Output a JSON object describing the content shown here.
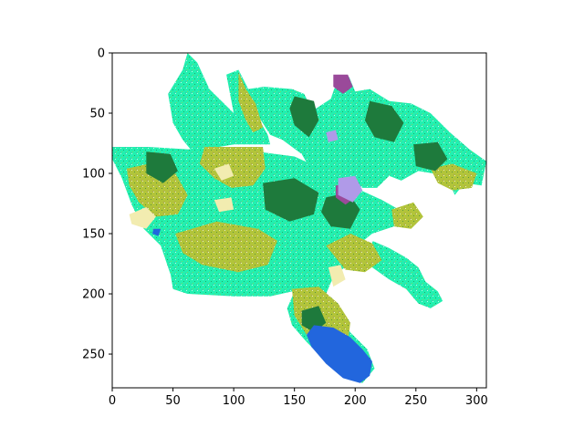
{
  "chart_data": {
    "type": "heatmap",
    "title": "",
    "xlabel": "",
    "ylabel": "",
    "xlim": [
      0,
      308
    ],
    "ylim": [
      278,
      0
    ],
    "x_ticks": [
      "0",
      "50",
      "100",
      "150",
      "200",
      "250",
      "300"
    ],
    "y_ticks": [
      "0",
      "50",
      "100",
      "150",
      "200",
      "250"
    ],
    "grid": false,
    "legend": "none",
    "colors": {
      "cyan_green": "#22f0b0",
      "olive": "#b2c43a",
      "dark_green": "#1e7a3c",
      "blue": "#2266dd",
      "purple": "#9a4a9a",
      "lavender": "#b09ae8",
      "cream": "#f2ecb0",
      "background": "#ffffff"
    },
    "regions": [
      {
        "name": "main-cover",
        "color": "cyan_green",
        "polygon": [
          [
            62,
            0
          ],
          [
            58,
            14
          ],
          [
            46,
            34
          ],
          [
            50,
            58
          ],
          [
            58,
            72
          ],
          [
            66,
            82
          ],
          [
            88,
            78
          ],
          [
            100,
            76
          ],
          [
            130,
            76
          ],
          [
            128,
            68
          ],
          [
            108,
            32
          ],
          [
            104,
            14
          ],
          [
            94,
            18
          ],
          [
            100,
            50
          ],
          [
            80,
            30
          ],
          [
            70,
            8
          ]
        ]
      },
      {
        "name": "north-block",
        "color": "cyan_green",
        "polygon": [
          [
            104,
            14
          ],
          [
            112,
            30
          ],
          [
            125,
            28
          ],
          [
            148,
            30
          ],
          [
            158,
            34
          ],
          [
            165,
            48
          ],
          [
            180,
            38
          ],
          [
            186,
            20
          ],
          [
            195,
            20
          ],
          [
            200,
            32
          ],
          [
            212,
            30
          ],
          [
            228,
            40
          ],
          [
            246,
            42
          ],
          [
            262,
            50
          ],
          [
            278,
            66
          ],
          [
            294,
            80
          ],
          [
            308,
            90
          ],
          [
            304,
            110
          ],
          [
            290,
            108
          ],
          [
            282,
            118
          ],
          [
            276,
            104
          ],
          [
            264,
            100
          ],
          [
            252,
            98
          ],
          [
            238,
            106
          ],
          [
            228,
            102
          ],
          [
            218,
            112
          ],
          [
            206,
            112
          ],
          [
            198,
            106
          ],
          [
            182,
            104
          ],
          [
            164,
            98
          ],
          [
            156,
            84
          ],
          [
            140,
            72
          ],
          [
            130,
            68
          ],
          [
            110,
            36
          ]
        ]
      },
      {
        "name": "west-belt",
        "color": "cyan_green",
        "polygon": [
          [
            0,
            78
          ],
          [
            30,
            78
          ],
          [
            62,
            80
          ],
          [
            90,
            80
          ],
          [
            120,
            82
          ],
          [
            150,
            86
          ],
          [
            176,
            98
          ],
          [
            196,
            110
          ],
          [
            222,
            122
          ],
          [
            236,
            130
          ],
          [
            232,
            144
          ],
          [
            214,
            150
          ],
          [
            204,
            158
          ],
          [
            196,
            174
          ],
          [
            182,
            186
          ],
          [
            176,
            200
          ],
          [
            164,
            208
          ],
          [
            148,
            198
          ],
          [
            130,
            202
          ],
          [
            100,
            202
          ],
          [
            62,
            200
          ],
          [
            50,
            196
          ],
          [
            48,
            184
          ],
          [
            40,
            160
          ],
          [
            26,
            146
          ],
          [
            16,
            126
          ],
          [
            8,
            104
          ],
          [
            0,
            88
          ]
        ]
      },
      {
        "name": "east-arm",
        "color": "cyan_green",
        "polygon": [
          [
            214,
            156
          ],
          [
            228,
            162
          ],
          [
            242,
            170
          ],
          [
            252,
            178
          ],
          [
            258,
            190
          ],
          [
            268,
            198
          ],
          [
            272,
            206
          ],
          [
            262,
            212
          ],
          [
            252,
            208
          ],
          [
            242,
            196
          ],
          [
            228,
            188
          ],
          [
            214,
            178
          ]
        ]
      },
      {
        "name": "south-lobe",
        "color": "cyan_green",
        "polygon": [
          [
            150,
            198
          ],
          [
            176,
            200
          ],
          [
            186,
            218
          ],
          [
            196,
            232
          ],
          [
            210,
            246
          ],
          [
            216,
            262
          ],
          [
            206,
            274
          ],
          [
            192,
            270
          ],
          [
            176,
            256
          ],
          [
            160,
            240
          ],
          [
            148,
            226
          ],
          [
            144,
            212
          ]
        ]
      },
      {
        "name": "olive-nw",
        "color": "olive",
        "polygon": [
          [
            76,
            78
          ],
          [
            124,
            78
          ],
          [
            126,
            96
          ],
          [
            116,
            110
          ],
          [
            98,
            112
          ],
          [
            84,
            104
          ],
          [
            72,
            92
          ]
        ]
      },
      {
        "name": "olive-north",
        "color": "olive",
        "polygon": [
          [
            104,
            16
          ],
          [
            110,
            30
          ],
          [
            118,
            42
          ],
          [
            124,
            62
          ],
          [
            116,
            66
          ],
          [
            110,
            56
          ],
          [
            104,
            40
          ]
        ]
      },
      {
        "name": "olive-west",
        "color": "olive",
        "polygon": [
          [
            12,
            96
          ],
          [
            30,
            92
          ],
          [
            52,
            100
          ],
          [
            62,
            118
          ],
          [
            54,
            134
          ],
          [
            36,
            136
          ],
          [
            22,
            124
          ],
          [
            14,
            110
          ]
        ]
      },
      {
        "name": "olive-center",
        "color": "olive",
        "polygon": [
          [
            52,
            150
          ],
          [
            86,
            140
          ],
          [
            120,
            146
          ],
          [
            136,
            156
          ],
          [
            128,
            176
          ],
          [
            104,
            182
          ],
          [
            74,
            176
          ],
          [
            58,
            166
          ]
        ]
      },
      {
        "name": "olive-mid",
        "color": "olive",
        "polygon": [
          [
            176,
            160
          ],
          [
            196,
            150
          ],
          [
            214,
            158
          ],
          [
            222,
            172
          ],
          [
            208,
            182
          ],
          [
            192,
            180
          ]
        ]
      },
      {
        "name": "olive-south",
        "color": "olive",
        "polygon": [
          [
            148,
            196
          ],
          [
            170,
            194
          ],
          [
            186,
            208
          ],
          [
            196,
            224
          ],
          [
            194,
            240
          ],
          [
            178,
            244
          ],
          [
            160,
            234
          ],
          [
            150,
            218
          ]
        ]
      },
      {
        "name": "olive-east",
        "color": "olive",
        "polygon": [
          [
            262,
            96
          ],
          [
            280,
            92
          ],
          [
            300,
            100
          ],
          [
            296,
            112
          ],
          [
            280,
            114
          ],
          [
            268,
            108
          ]
        ]
      },
      {
        "name": "olive-se",
        "color": "olive",
        "polygon": [
          [
            230,
            130
          ],
          [
            248,
            124
          ],
          [
            256,
            136
          ],
          [
            246,
            146
          ],
          [
            232,
            144
          ]
        ]
      },
      {
        "name": "dkgreen-north",
        "color": "dark_green",
        "polygon": [
          [
            150,
            36
          ],
          [
            166,
            40
          ],
          [
            170,
            56
          ],
          [
            162,
            70
          ],
          [
            150,
            60
          ],
          [
            146,
            46
          ]
        ]
      },
      {
        "name": "dkgreen-ne",
        "color": "dark_green",
        "polygon": [
          [
            212,
            40
          ],
          [
            230,
            44
          ],
          [
            240,
            58
          ],
          [
            232,
            74
          ],
          [
            216,
            70
          ],
          [
            208,
            56
          ]
        ]
      },
      {
        "name": "dkgreen-west",
        "color": "dark_green",
        "polygon": [
          [
            28,
            82
          ],
          [
            48,
            84
          ],
          [
            54,
            98
          ],
          [
            42,
            108
          ],
          [
            28,
            100
          ]
        ]
      },
      {
        "name": "dkgreen-center",
        "color": "dark_green",
        "polygon": [
          [
            124,
            108
          ],
          [
            150,
            104
          ],
          [
            170,
            116
          ],
          [
            166,
            134
          ],
          [
            146,
            140
          ],
          [
            126,
            130
          ]
        ]
      },
      {
        "name": "dkgreen-mid",
        "color": "dark_green",
        "polygon": [
          [
            176,
            120
          ],
          [
            194,
            116
          ],
          [
            204,
            130
          ],
          [
            196,
            146
          ],
          [
            180,
            144
          ],
          [
            172,
            132
          ]
        ]
      },
      {
        "name": "dkgreen-east",
        "color": "dark_green",
        "polygon": [
          [
            248,
            76
          ],
          [
            268,
            74
          ],
          [
            276,
            88
          ],
          [
            266,
            98
          ],
          [
            250,
            94
          ]
        ]
      },
      {
        "name": "dkgreen-south",
        "color": "dark_green",
        "polygon": [
          [
            156,
            214
          ],
          [
            170,
            210
          ],
          [
            176,
            224
          ],
          [
            166,
            232
          ],
          [
            156,
            226
          ]
        ]
      },
      {
        "name": "blue-south",
        "color": "blue",
        "polygon": [
          [
            166,
            226
          ],
          [
            182,
            228
          ],
          [
            196,
            236
          ],
          [
            206,
            246
          ],
          [
            214,
            256
          ],
          [
            212,
            268
          ],
          [
            204,
            274
          ],
          [
            190,
            270
          ],
          [
            176,
            258
          ],
          [
            164,
            244
          ],
          [
            160,
            234
          ]
        ]
      },
      {
        "name": "blue-west",
        "color": "blue",
        "polygon": [
          [
            34,
            146
          ],
          [
            40,
            146
          ],
          [
            38,
            152
          ],
          [
            33,
            150
          ]
        ]
      },
      {
        "name": "purple-ne",
        "color": "purple",
        "polygon": [
          [
            182,
            18
          ],
          [
            194,
            18
          ],
          [
            198,
            28
          ],
          [
            190,
            34
          ],
          [
            182,
            28
          ]
        ]
      },
      {
        "name": "purple-center",
        "color": "purple",
        "polygon": [
          [
            184,
            110
          ],
          [
            196,
            108
          ],
          [
            200,
            120
          ],
          [
            192,
            126
          ],
          [
            184,
            120
          ]
        ]
      },
      {
        "name": "lavender-center",
        "color": "lavender",
        "polygon": [
          [
            186,
            104
          ],
          [
            200,
            102
          ],
          [
            206,
            114
          ],
          [
            198,
            124
          ],
          [
            186,
            118
          ]
        ]
      },
      {
        "name": "lavender-ne",
        "color": "lavender",
        "polygon": [
          [
            176,
            66
          ],
          [
            184,
            64
          ],
          [
            186,
            72
          ],
          [
            178,
            74
          ]
        ]
      },
      {
        "name": "cream-west",
        "color": "cream",
        "polygon": [
          [
            14,
            134
          ],
          [
            28,
            128
          ],
          [
            36,
            136
          ],
          [
            28,
            146
          ],
          [
            16,
            142
          ]
        ]
      },
      {
        "name": "cream-center",
        "color": "cream",
        "polygon": [
          [
            84,
            96
          ],
          [
            96,
            92
          ],
          [
            100,
            102
          ],
          [
            90,
            106
          ]
        ]
      },
      {
        "name": "cream-mid",
        "color": "cream",
        "polygon": [
          [
            84,
            122
          ],
          [
            98,
            120
          ],
          [
            100,
            130
          ],
          [
            88,
            132
          ]
        ]
      },
      {
        "name": "cream-south",
        "color": "cream",
        "polygon": [
          [
            178,
            178
          ],
          [
            188,
            176
          ],
          [
            192,
            188
          ],
          [
            182,
            194
          ]
        ]
      }
    ]
  }
}
